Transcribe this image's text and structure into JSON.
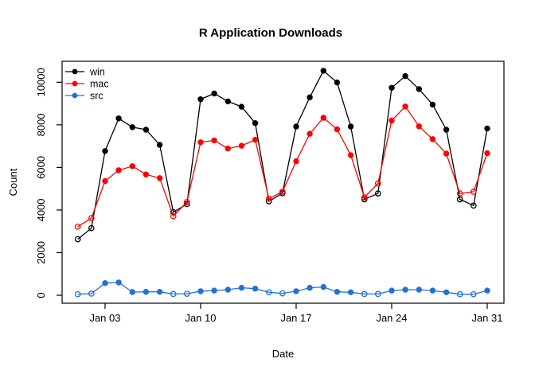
{
  "title": "R Application Downloads",
  "chart_data": {
    "type": "line",
    "title": "R Application Downloads",
    "xlabel": "Date",
    "ylabel": "Count",
    "x_unit": "day of January",
    "days": [
      1,
      2,
      3,
      4,
      5,
      6,
      7,
      8,
      9,
      10,
      11,
      12,
      13,
      14,
      15,
      16,
      17,
      18,
      19,
      20,
      21,
      22,
      23,
      24,
      25,
      26,
      27,
      28,
      29,
      30,
      31
    ],
    "x_tick_days": [
      3,
      10,
      17,
      24,
      31
    ],
    "x_tick_labels": [
      "Jan 03",
      "Jan 10",
      "Jan 17",
      "Jan 24",
      "Jan 31"
    ],
    "y_ticks": [
      0,
      2000,
      4000,
      6000,
      8000,
      10000
    ],
    "y_tick_labels": [
      "0",
      "2000",
      "4000",
      "6000",
      "8000",
      "10000"
    ],
    "ylim": [
      -430,
      11000
    ],
    "grid": false,
    "legend_position": "top-left",
    "open_marker_days": [
      1,
      2,
      8,
      9,
      15,
      16,
      22,
      23,
      29,
      30
    ],
    "open_marker_meaning": "weekend days drawn as hollow circles",
    "series": [
      {
        "name": "win",
        "color": "#000000",
        "values": [
          2630,
          3150,
          6770,
          8300,
          7890,
          7770,
          7060,
          3900,
          4280,
          9200,
          9470,
          9100,
          8850,
          8080,
          4410,
          4790,
          7920,
          9290,
          10540,
          9990,
          7920,
          4500,
          4780,
          9740,
          10290,
          9680,
          8950,
          7770,
          4500,
          4210,
          7830
        ]
      },
      {
        "name": "mac",
        "color": "#FF0000",
        "values": [
          3220,
          3620,
          5360,
          5870,
          6060,
          5670,
          5500,
          3710,
          4380,
          7180,
          7270,
          6890,
          7020,
          7300,
          4530,
          4860,
          6290,
          7580,
          8330,
          7790,
          6580,
          4590,
          5250,
          8200,
          8860,
          7930,
          7330,
          6650,
          4780,
          4860,
          6670
        ]
      },
      {
        "name": "src",
        "color": "#2171D9",
        "values": [
          50,
          80,
          570,
          600,
          150,
          160,
          160,
          60,
          70,
          190,
          220,
          260,
          350,
          310,
          140,
          90,
          190,
          350,
          390,
          160,
          140,
          60,
          60,
          220,
          260,
          260,
          220,
          140,
          50,
          50,
          220
        ]
      }
    ]
  }
}
